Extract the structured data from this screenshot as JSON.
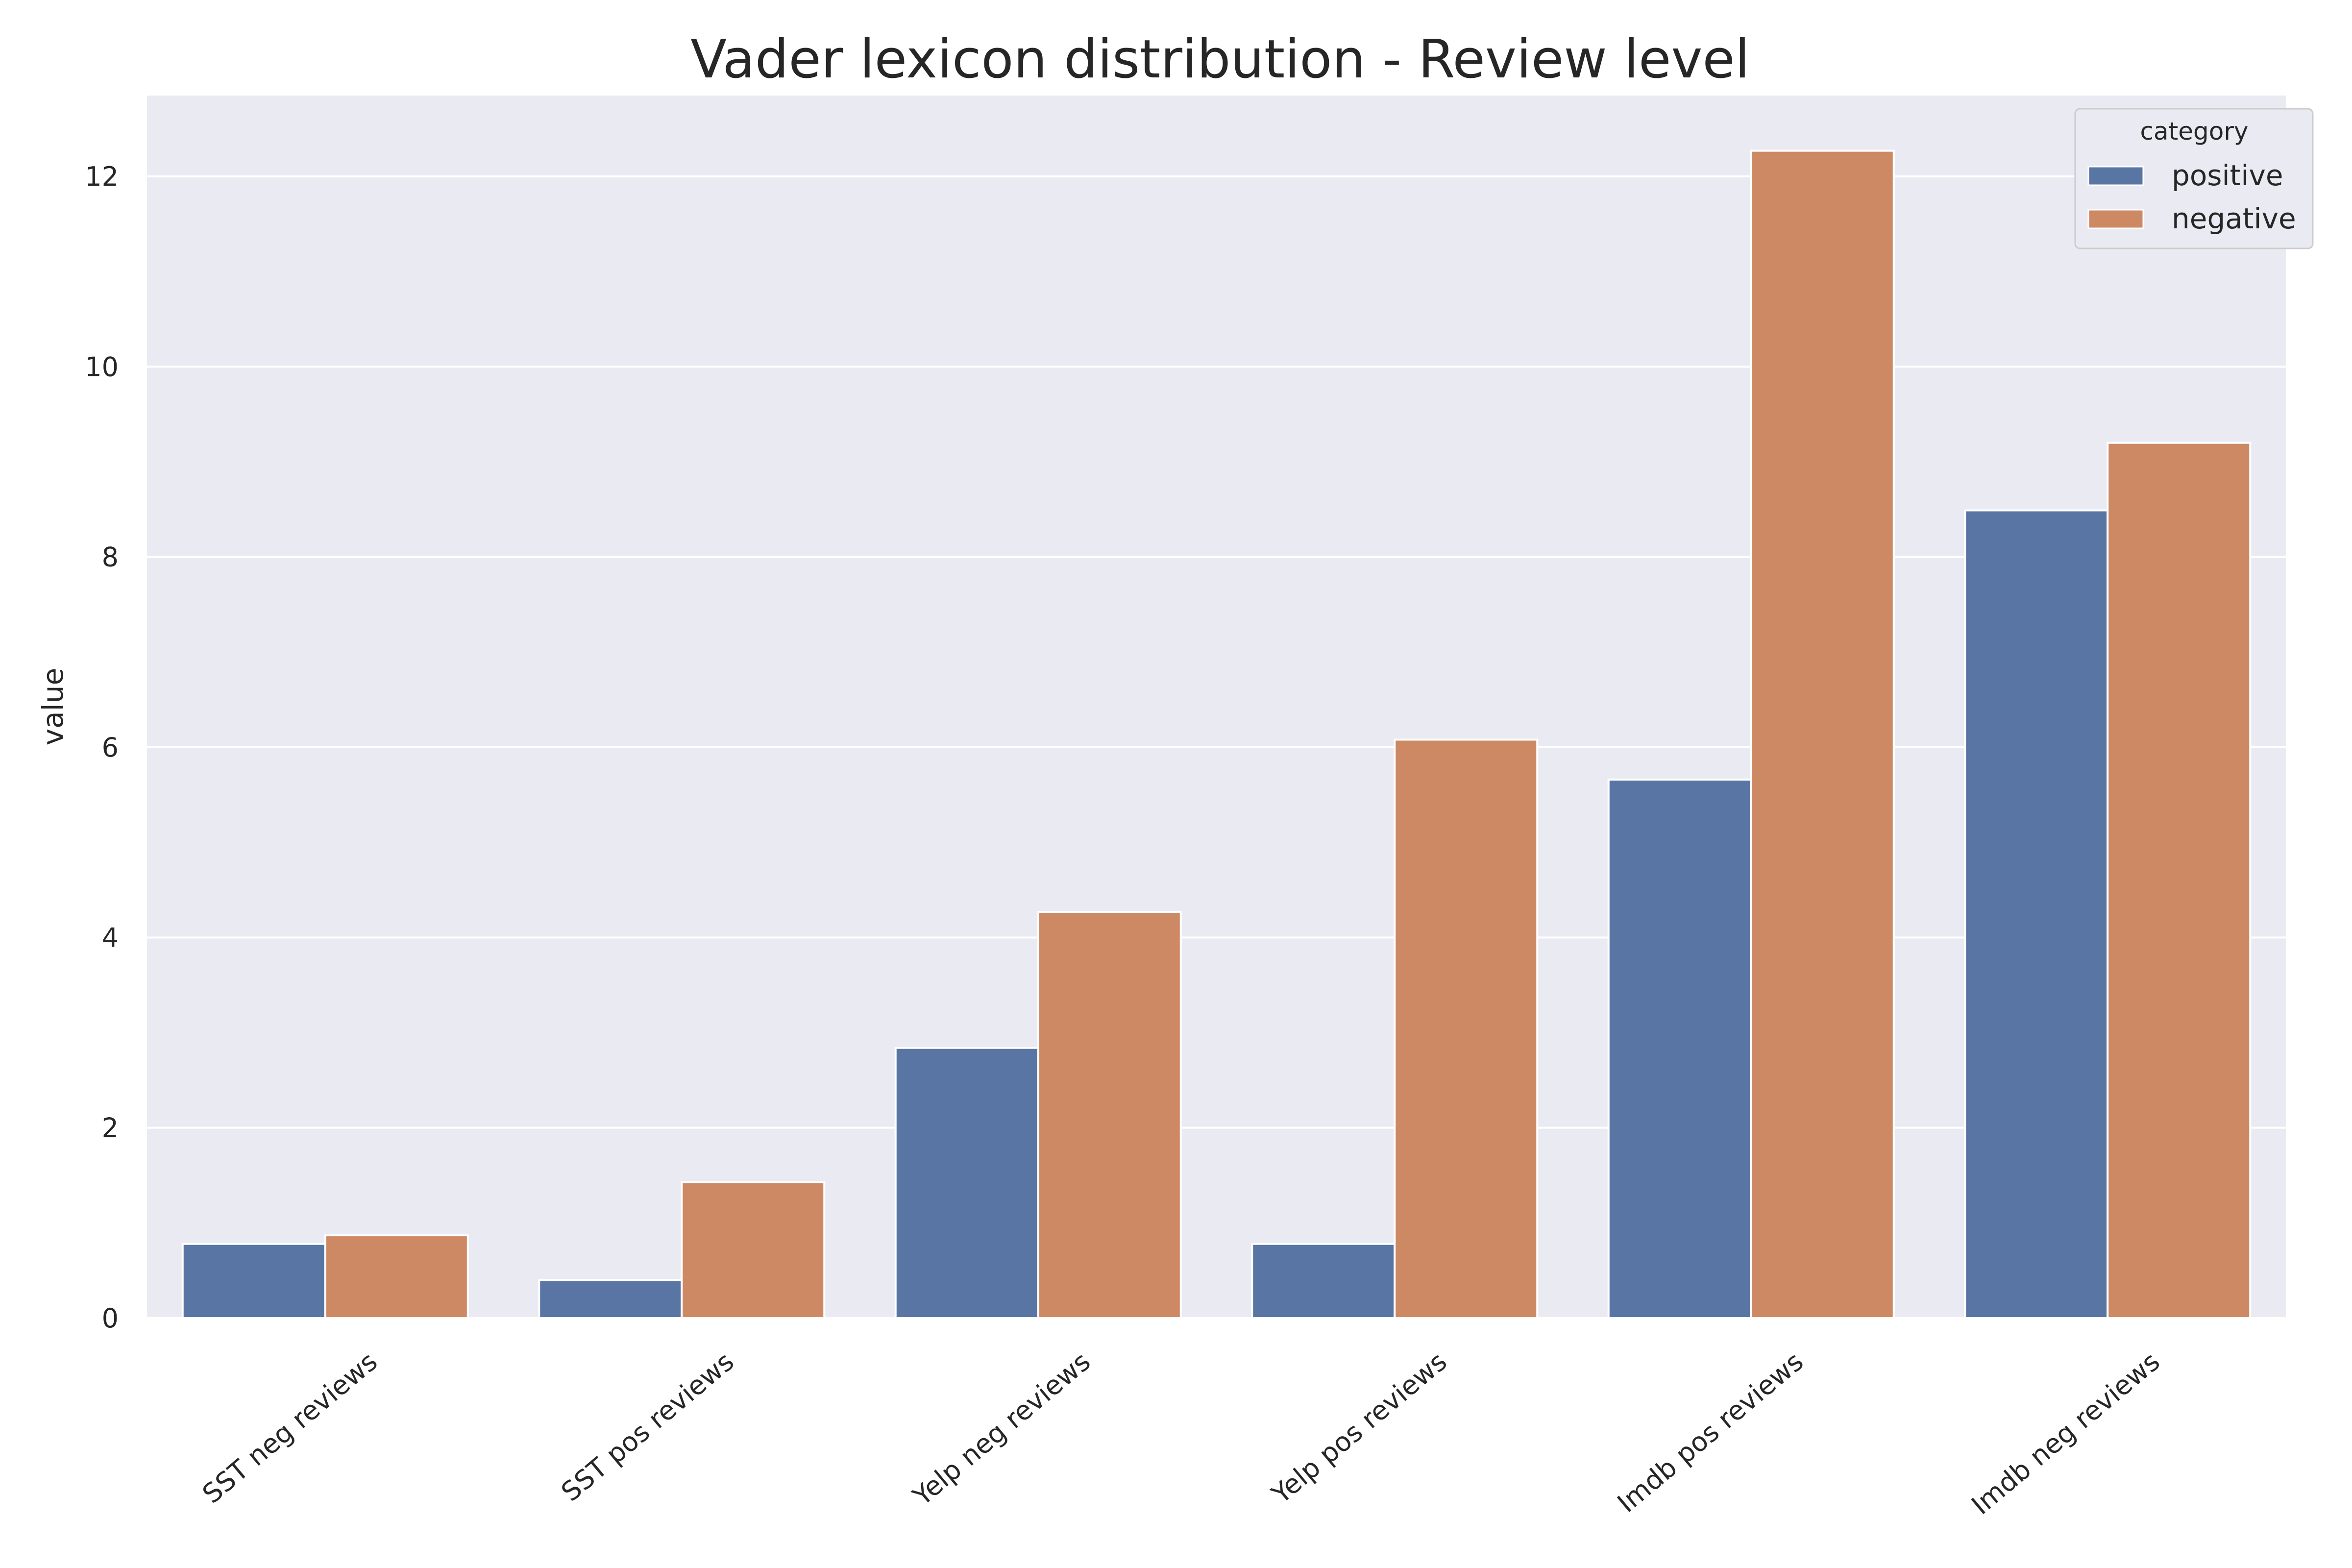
{
  "chart_data": {
    "type": "bar",
    "title": "Vader lexicon distribution - Review level",
    "xlabel": "",
    "ylabel": "value",
    "categories": [
      "SST neg reviews",
      "SST pos reviews",
      "Yelp neg reviews",
      "Yelp pos reviews",
      "Imdb pos reviews",
      "Imdb neg reviews"
    ],
    "series": [
      {
        "name": "positive",
        "color": "#5975a4",
        "values": [
          0.78,
          0.4,
          2.84,
          0.78,
          5.66,
          8.49
        ]
      },
      {
        "name": "negative",
        "color": "#cc8963",
        "values": [
          0.87,
          1.43,
          4.27,
          6.08,
          12.27,
          9.2
        ]
      }
    ],
    "ylim": [
      0,
      12.85
    ],
    "yticks": [
      0,
      2,
      4,
      6,
      8,
      10,
      12
    ],
    "grid": true,
    "legend": {
      "title": "category",
      "placement": "top-right"
    },
    "background": "#eaeaf2",
    "grid_color": "#ffffff"
  }
}
